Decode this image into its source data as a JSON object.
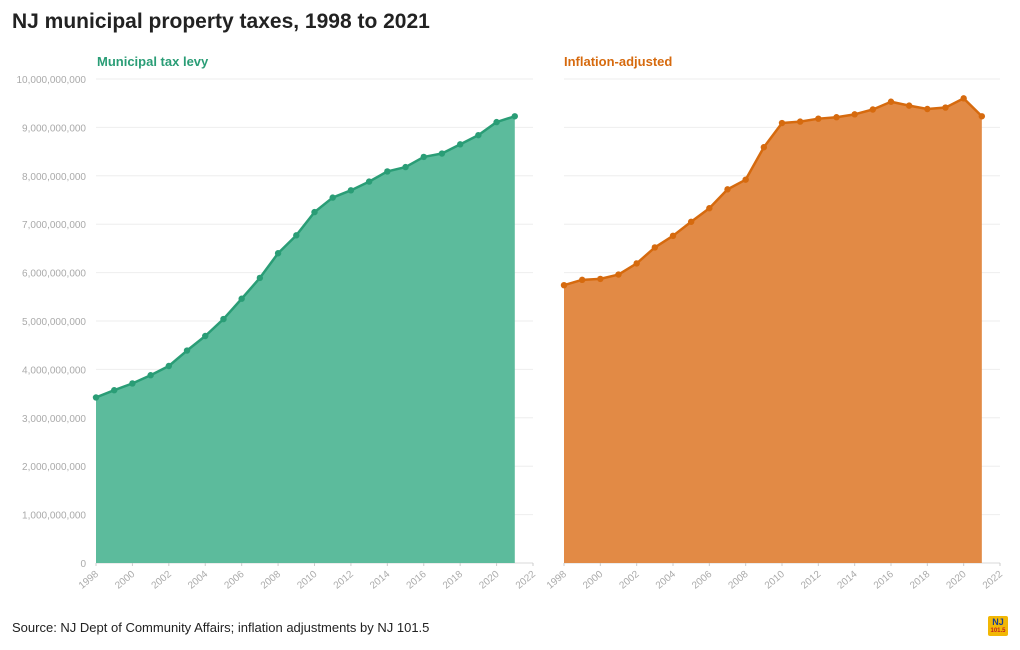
{
  "title": "NJ municipal property taxes, 1998 to 2021",
  "source": "Source: NJ Dept of Community Affairs; inflation adjustments by NJ 101.5",
  "logo": {
    "line1": "NJ",
    "line2": "101.5"
  },
  "chart_data": [
    {
      "type": "area",
      "title": "Municipal tax levy",
      "color": "#2a9d76",
      "fill": "#5cbb9c",
      "xlim": [
        1998,
        2022
      ],
      "ylim": [
        0,
        10000000000
      ],
      "x_ticks": [
        "1998",
        "2000",
        "2002",
        "2004",
        "2006",
        "2008",
        "2010",
        "2012",
        "2014",
        "2016",
        "2018",
        "2020",
        "2022"
      ],
      "y_ticks": [
        "0",
        "1,000,000,000",
        "2,000,000,000",
        "3,000,000,000",
        "4,000,000,000",
        "5,000,000,000",
        "6,000,000,000",
        "7,000,000,000",
        "8,000,000,000",
        "9,000,000,000",
        "10,000,000,000"
      ],
      "x": [
        1998,
        1999,
        2000,
        2001,
        2002,
        2003,
        2004,
        2005,
        2006,
        2007,
        2008,
        2009,
        2010,
        2011,
        2012,
        2013,
        2014,
        2015,
        2016,
        2017,
        2018,
        2019,
        2020,
        2021
      ],
      "values": [
        3420000000,
        3570000000,
        3710000000,
        3880000000,
        4070000000,
        4390000000,
        4690000000,
        5040000000,
        5460000000,
        5890000000,
        6400000000,
        6770000000,
        7250000000,
        7550000000,
        7700000000,
        7880000000,
        8090000000,
        8180000000,
        8390000000,
        8460000000,
        8650000000,
        8840000000,
        9110000000,
        9230000000
      ],
      "grid": true
    },
    {
      "type": "area",
      "title": "Inflation-adjusted",
      "color": "#d66a0e",
      "fill": "#e28a45",
      "xlim": [
        1998,
        2022
      ],
      "ylim": [
        0,
        10000000000
      ],
      "x_ticks": [
        "1998",
        "2000",
        "2002",
        "2004",
        "2006",
        "2008",
        "2010",
        "2012",
        "2014",
        "2016",
        "2018",
        "2020",
        "2022"
      ],
      "x": [
        1998,
        1999,
        2000,
        2001,
        2002,
        2003,
        2004,
        2005,
        2006,
        2007,
        2008,
        2009,
        2010,
        2011,
        2012,
        2013,
        2014,
        2015,
        2016,
        2017,
        2018,
        2019,
        2020,
        2021
      ],
      "values": [
        5740000000,
        5850000000,
        5870000000,
        5960000000,
        6190000000,
        6520000000,
        6760000000,
        7050000000,
        7330000000,
        7720000000,
        7920000000,
        8590000000,
        9090000000,
        9120000000,
        9180000000,
        9210000000,
        9270000000,
        9370000000,
        9530000000,
        9450000000,
        9380000000,
        9410000000,
        9600000000,
        9230000000
      ],
      "grid": true
    }
  ]
}
